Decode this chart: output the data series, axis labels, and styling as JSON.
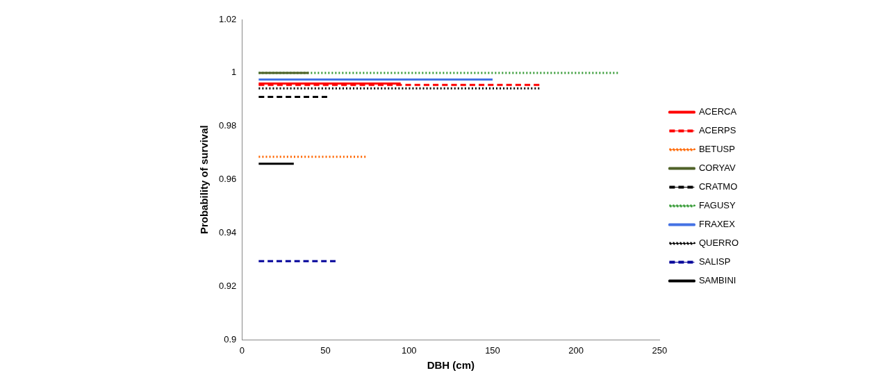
{
  "chart_data": {
    "type": "line",
    "xlabel": "DBH (cm)",
    "ylabel": "Probability of survival",
    "xlim": [
      0,
      250
    ],
    "xticks": [
      0,
      50,
      100,
      150,
      200,
      250
    ],
    "ylim": [
      0.9,
      1.02
    ],
    "yticks": [
      0.9,
      0.92,
      0.94,
      0.96,
      0.98,
      1,
      1.02
    ],
    "grid": false,
    "legend": "right",
    "marker": "none",
    "series": [
      {
        "name": "ACERCA",
        "color": "#ff0000",
        "line_style": "solid",
        "x": [
          10,
          95
        ],
        "values": [
          0.996,
          0.996
        ]
      },
      {
        "name": "ACERPS",
        "color": "#ff0000",
        "line_style": "dashed",
        "x": [
          10,
          178
        ],
        "values": [
          0.9955,
          0.9955
        ]
      },
      {
        "name": "BETUSP",
        "color": "#ff6600",
        "line_style": "dotted",
        "x": [
          10,
          74
        ],
        "values": [
          0.9686,
          0.9686
        ]
      },
      {
        "name": "CORYAV",
        "color": "#4f6228",
        "line_style": "solid",
        "x": [
          10,
          40
        ],
        "values": [
          1,
          1
        ]
      },
      {
        "name": "CRATMO",
        "color": "#000000",
        "line_style": "dashed",
        "x": [
          10,
          51
        ],
        "values": [
          0.991,
          0.991
        ]
      },
      {
        "name": "FAGUSY",
        "color": "#339933",
        "line_style": "dotted",
        "x": [
          10,
          225
        ],
        "values": [
          1,
          1
        ]
      },
      {
        "name": "FRAXEX",
        "color": "#4472e4",
        "line_style": "solid",
        "x": [
          10,
          150
        ],
        "values": [
          0.9975,
          0.9975
        ]
      },
      {
        "name": "QUERRO",
        "color": "#000000",
        "line_style": "dotted",
        "x": [
          10,
          178
        ],
        "values": [
          0.9942,
          0.9942
        ]
      },
      {
        "name": "SALISP",
        "color": "#000099",
        "line_style": "dashed",
        "x": [
          10,
          56
        ],
        "values": [
          0.9295,
          0.9295
        ]
      },
      {
        "name": "SAMBINI",
        "color": "#000000",
        "line_style": "solid",
        "x": [
          10,
          31
        ],
        "values": [
          0.966,
          0.966
        ]
      }
    ]
  }
}
